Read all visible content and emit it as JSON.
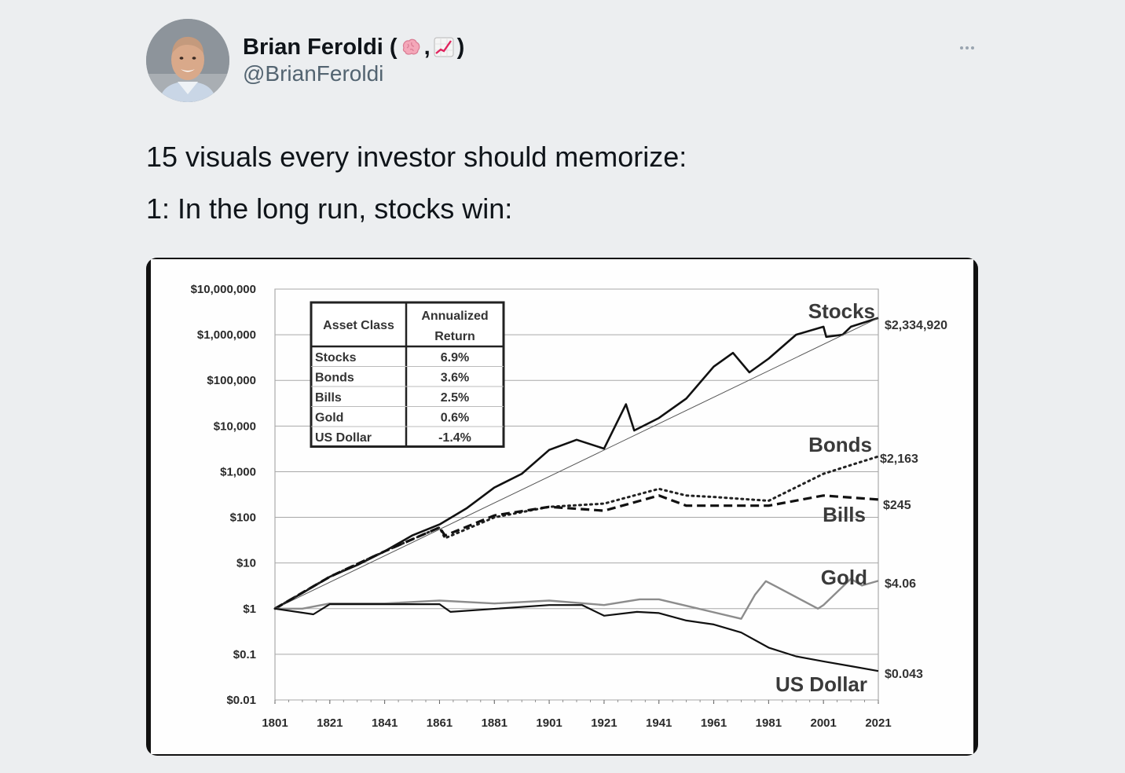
{
  "tweet": {
    "author_name": "Brian Feroldi (",
    "author_name_sep": ",",
    "author_name_end": ")",
    "emoji_1": "🧠",
    "emoji_2": "📈",
    "handle": "@BrianFeroldi",
    "line_1": "15 visuals every investor should memorize:",
    "line_2": "1: In the long run, stocks win:",
    "more_icon": "more-horizontal-icon"
  },
  "chart_data": {
    "type": "line",
    "y_scale": "log",
    "ylim": [
      0.01,
      10000000
    ],
    "y_ticks": [
      "$10,000,000",
      "$1,000,000",
      "$100,000",
      "$10,000",
      "$1,000",
      "$100",
      "$10",
      "$1",
      "$0.1",
      "$0.01"
    ],
    "x_ticks": [
      "1801",
      "1821",
      "1841",
      "1861",
      "1881",
      "1901",
      "1921",
      "1941",
      "1961",
      "1981",
      "2001",
      "2021"
    ],
    "xlim": [
      1801,
      2021
    ],
    "grid": true,
    "table": {
      "headers": [
        "Asset Class",
        "Annualized Return"
      ],
      "header_lines": [
        [
          "Asset Class"
        ],
        [
          "Annualized",
          "Return"
        ]
      ],
      "rows": [
        [
          "Stocks",
          "6.9%"
        ],
        [
          "Bonds",
          "3.6%"
        ],
        [
          "Bills",
          "2.5%"
        ],
        [
          "Gold",
          "0.6%"
        ],
        [
          "US Dollar",
          "-1.4%"
        ]
      ]
    },
    "series": [
      {
        "name": "Stocks",
        "end_value_label": "$2,334,920",
        "style": "solid-thick",
        "color": "#111111",
        "x": [
          1801,
          1811,
          1821,
          1831,
          1841,
          1851,
          1861,
          1871,
          1881,
          1891,
          1901,
          1911,
          1921,
          1929,
          1932,
          1941,
          1951,
          1961,
          1968,
          1974,
          1981,
          1991,
          2001,
          2002,
          2008,
          2011,
          2021
        ],
        "y": [
          1,
          2.2,
          5,
          9,
          18,
          40,
          70,
          160,
          450,
          900,
          3000,
          5000,
          3200,
          30000,
          8000,
          15000,
          40000,
          200000,
          400000,
          150000,
          300000,
          1000000,
          1500000,
          900000,
          1000000,
          1500000,
          2334920
        ]
      },
      {
        "name": "Trend",
        "style": "solid-thin",
        "color": "#555555",
        "x": [
          1801,
          2021
        ],
        "y": [
          1,
          2334920
        ]
      },
      {
        "name": "Bonds",
        "end_value_label": "$2,163",
        "style": "dotted",
        "color": "#222222",
        "x": [
          1801,
          1821,
          1841,
          1861,
          1863,
          1881,
          1901,
          1921,
          1941,
          1951,
          1961,
          1981,
          2001,
          2021
        ],
        "y": [
          1,
          5,
          18,
          60,
          35,
          100,
          170,
          200,
          420,
          300,
          280,
          230,
          900,
          2163
        ]
      },
      {
        "name": "Bills",
        "end_value_label": "$245",
        "style": "dashed",
        "color": "#111111",
        "x": [
          1801,
          1821,
          1841,
          1861,
          1863,
          1881,
          1901,
          1921,
          1941,
          1951,
          1961,
          1981,
          2001,
          2021
        ],
        "y": [
          1,
          5,
          18,
          60,
          40,
          110,
          170,
          140,
          300,
          180,
          180,
          180,
          300,
          245
        ]
      },
      {
        "name": "Gold",
        "end_value_label": "$4.06",
        "style": "solid-gray",
        "color": "#8c8c8c",
        "x": [
          1801,
          1811,
          1821,
          1841,
          1861,
          1881,
          1901,
          1921,
          1934,
          1941,
          1971,
          1976,
          1980,
          1984,
          1999,
          2001,
          2011,
          2015,
          2021
        ],
        "y": [
          1,
          1,
          1.3,
          1.3,
          1.5,
          1.3,
          1.5,
          1.2,
          1.6,
          1.6,
          0.6,
          2.0,
          4.0,
          3.0,
          1.0,
          1.2,
          4.5,
          3.2,
          4.06
        ]
      },
      {
        "name": "US Dollar",
        "end_value_label": "$0.043",
        "style": "solid",
        "color": "#111111",
        "x": [
          1801,
          1815,
          1821,
          1861,
          1865,
          1901,
          1913,
          1921,
          1933,
          1941,
          1951,
          1961,
          1971,
          1981,
          1991,
          2001,
          2011,
          2021
        ],
        "y": [
          1,
          0.75,
          1.25,
          1.25,
          0.85,
          1.2,
          1.2,
          0.7,
          0.85,
          0.8,
          0.55,
          0.45,
          0.3,
          0.14,
          0.09,
          0.07,
          0.055,
          0.043
        ]
      }
    ]
  }
}
